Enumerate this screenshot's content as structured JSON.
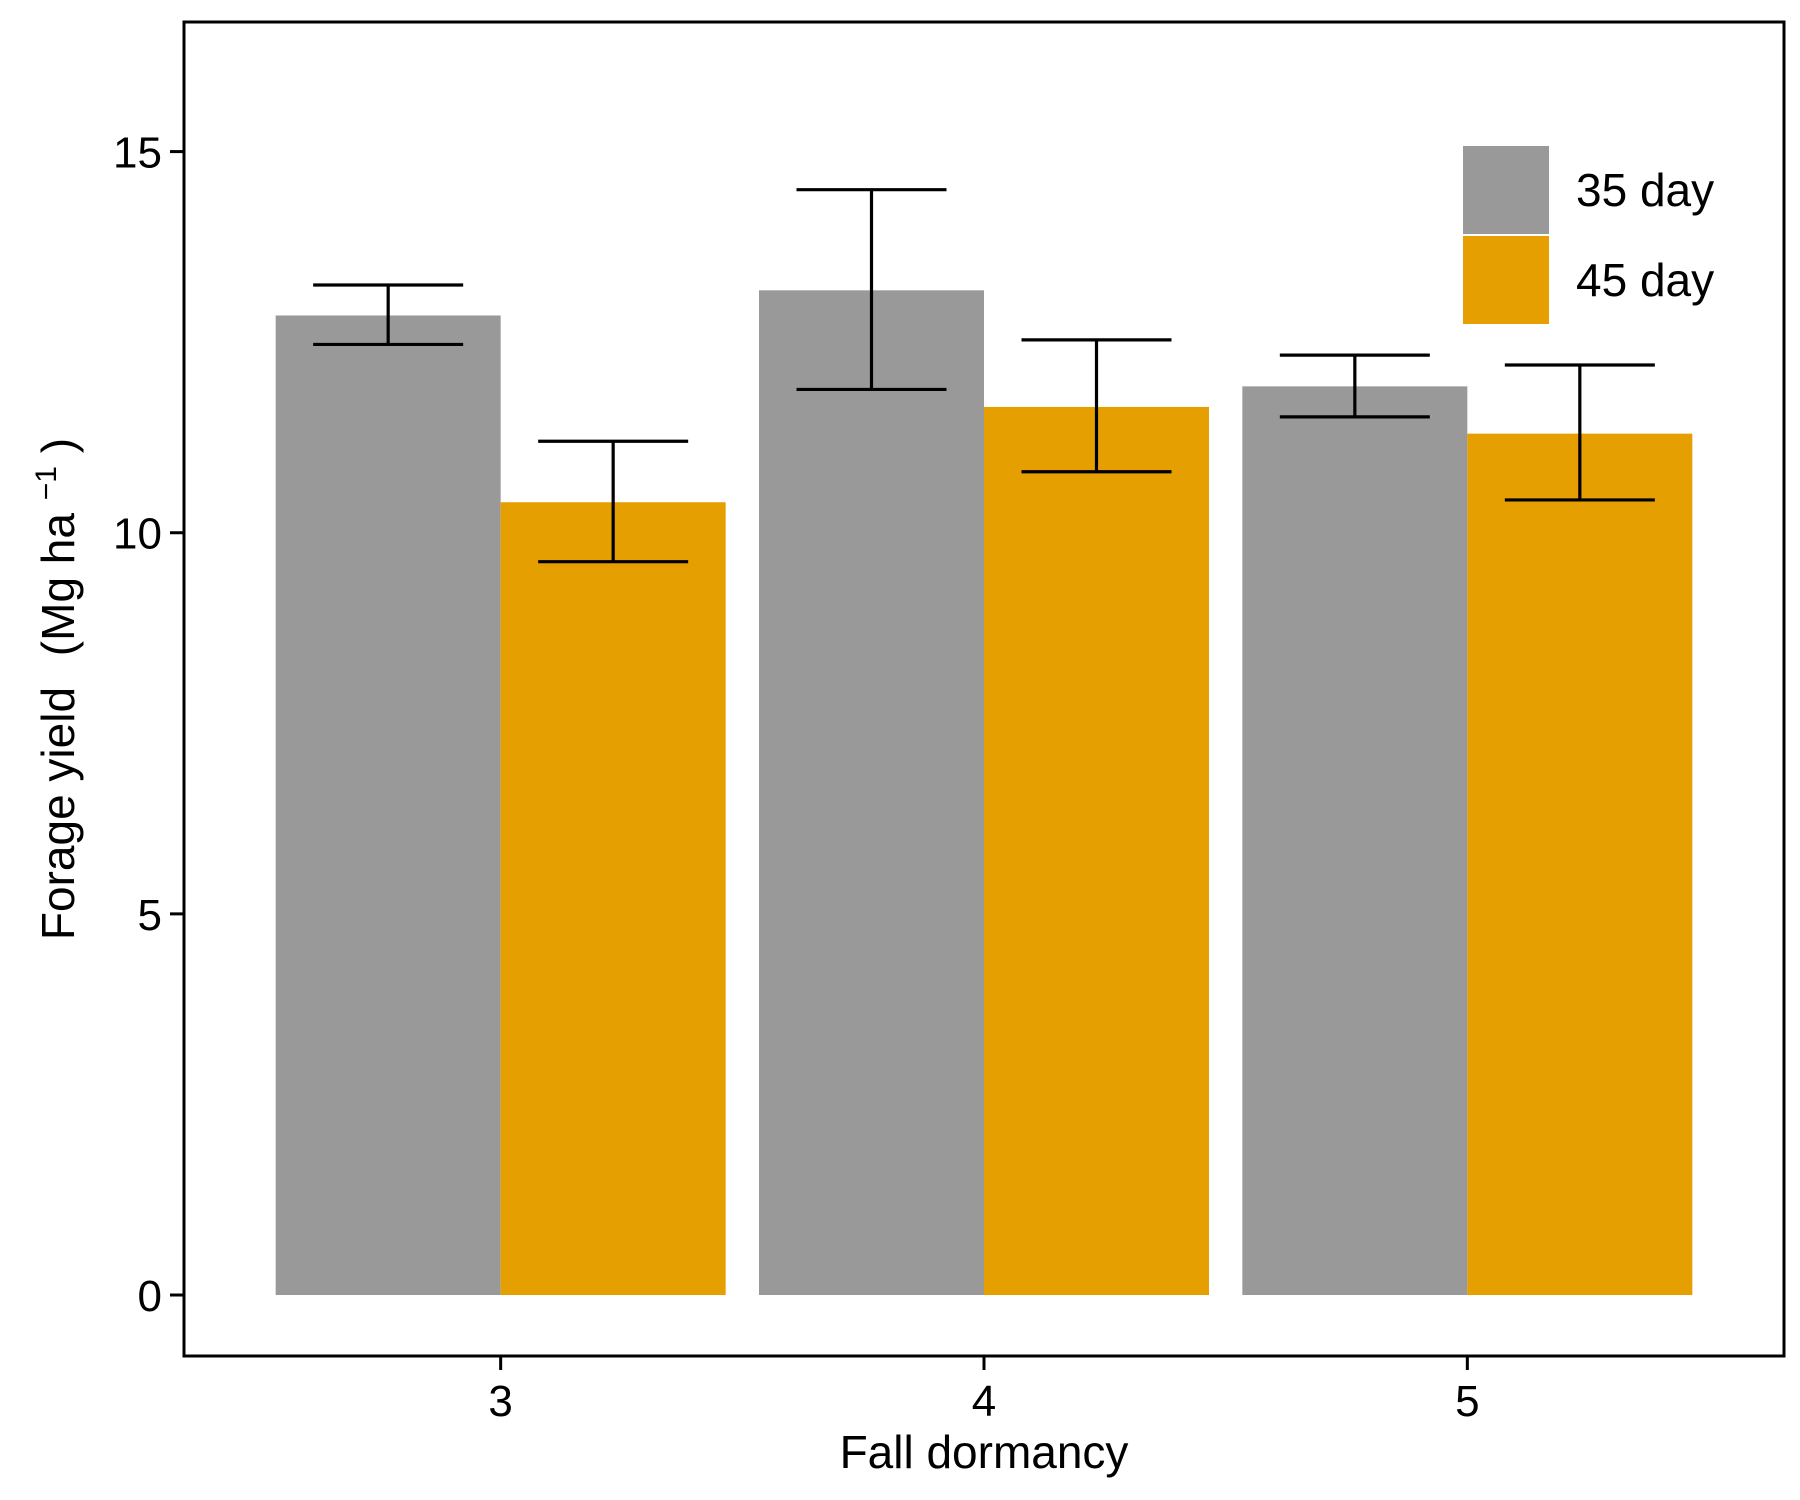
{
  "chart_data": {
    "type": "bar",
    "xlabel": "Fall dormancy",
    "ylabel": "Forage yield",
    "ylabel_unit": "(Mg ha",
    "ylabel_unit_sup": "−1",
    "ylabel_unit_close": ")",
    "categories": [
      "3",
      "4",
      "5"
    ],
    "ylim": [
      -0.8,
      16.7
    ],
    "yticks": [
      0,
      5,
      10,
      15
    ],
    "grid": false,
    "legend_position": "top-right",
    "series": [
      {
        "name": "35 day",
        "color": "#999999",
        "values": [
          12.85,
          13.18,
          11.92
        ],
        "err_low": [
          12.47,
          11.88,
          11.52
        ],
        "err_high": [
          13.25,
          14.5,
          12.33
        ]
      },
      {
        "name": "45 day",
        "color": "#E69F00",
        "values": [
          10.4,
          11.65,
          11.3
        ],
        "err_low": [
          9.62,
          10.8,
          10.43
        ],
        "err_high": [
          11.2,
          12.53,
          12.2
        ]
      }
    ]
  }
}
